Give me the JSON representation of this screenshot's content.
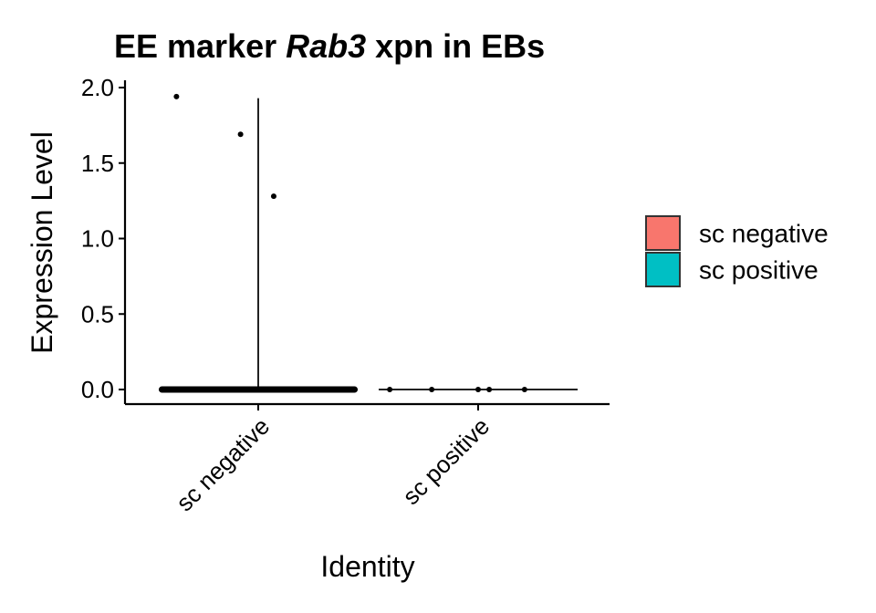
{
  "chart_data": {
    "type": "violin",
    "title": {
      "prefix": "EE marker ",
      "gene": "Rab3",
      "suffix": " xpn in EBs"
    },
    "xlabel": "Identity",
    "ylabel": "Expression Level",
    "ylim": [
      -0.08,
      2.03
    ],
    "yticks": [
      {
        "value": 0.0,
        "label": "0.0"
      },
      {
        "value": 0.5,
        "label": "0.5"
      },
      {
        "value": 1.0,
        "label": "1.0"
      },
      {
        "value": 1.5,
        "label": "1.5"
      },
      {
        "value": 2.0,
        "label": "2.0"
      }
    ],
    "categories": [
      "sc negative",
      "sc positive"
    ],
    "grid": false,
    "legend_position": "right",
    "series": [
      {
        "name": "sc negative",
        "color": "#F8766D",
        "max_value": 1.93,
        "points": [
          {
            "x_jitter": -0.37,
            "y": 1.94
          },
          {
            "x_jitter": -0.08,
            "y": 1.69
          },
          {
            "x_jitter": 0.07,
            "y": 1.28
          }
        ],
        "zero_band": {
          "from_jitter": -0.45,
          "to_jitter": 0.45
        }
      },
      {
        "name": "sc positive",
        "color": "#00BFC4",
        "max_value": 0.0,
        "points": [
          {
            "x_jitter": -0.4,
            "y": 0
          },
          {
            "x_jitter": -0.21,
            "y": 0
          },
          {
            "x_jitter": 0.0,
            "y": 0
          },
          {
            "x_jitter": 0.05,
            "y": 0
          },
          {
            "x_jitter": 0.21,
            "y": 0
          }
        ]
      }
    ],
    "legend": [
      {
        "label": "sc negative",
        "color": "#F8766D"
      },
      {
        "label": "sc positive",
        "color": "#00BFC4"
      }
    ]
  }
}
